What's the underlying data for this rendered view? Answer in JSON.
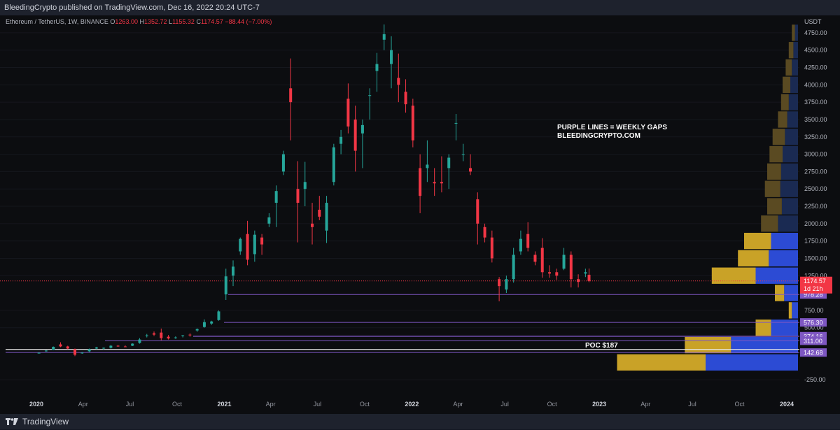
{
  "header": {
    "text": "BleedingCrypto published on TradingView.com, Dec 16, 2022 20:24 UTC-7"
  },
  "footer": {
    "brand": "TradingView"
  },
  "legend": {
    "symbol": "Ethereum / TetherUS, 1W, BINANCE",
    "o_label": "O",
    "o": "1263.00",
    "h_label": "H",
    "h": "1352.72",
    "l_label": "L",
    "l": "1155.32",
    "c_label": "C",
    "c": "1174.57",
    "change": "−88.44 (−7.00%)"
  },
  "annotations": {
    "note_line1": "PURPLE LINES = WEEKLY GAPS",
    "note_line2": "BLEEDINGCRYPTO.COM",
    "poc": "POC $187"
  },
  "colors": {
    "up": "#26a69a",
    "down": "#f23645",
    "gap_line": "#7e57c2",
    "vp_gold": "#c9a227",
    "vp_blue": "#2c4bd4",
    "price_tag": "#f23645",
    "gap_tag": "#7e57c2"
  },
  "chart_data": {
    "type": "candlestick",
    "title": "Ethereum / TetherUS, 1W, BINANCE",
    "ylabel": "USDT",
    "ylim": [
      -420,
      4900
    ],
    "y_ticks": [
      4750,
      4500,
      4250,
      4000,
      3750,
      3500,
      3250,
      3000,
      2750,
      2500,
      2250,
      2000,
      1750,
      1500,
      1250,
      750,
      500,
      -250
    ],
    "x_ticks": [
      "2020",
      "Apr",
      "Jul",
      "Oct",
      "2021",
      "Apr",
      "Jul",
      "Oct",
      "2022",
      "Apr",
      "Jul",
      "Oct",
      "2023",
      "Apr",
      "Jul",
      "Oct",
      "2024"
    ],
    "last_price": 1174.57,
    "countdown": "1d 21h",
    "weekly_gaps": [
      {
        "value": 978.28,
        "label": "978.28"
      },
      {
        "value": 576.3,
        "label": "576.30"
      },
      {
        "value": 378.11,
        "label": "378.11"
      },
      {
        "value": 374.16,
        "label": "374.16"
      },
      {
        "value": 311.0,
        "label": "311.00"
      },
      {
        "value": 142.68,
        "label": "142.68"
      }
    ],
    "poc_level": 187,
    "candles": [
      {
        "date": "2020-01-06",
        "o": 135,
        "h": 145,
        "l": 130,
        "c": 138
      },
      {
        "date": "2020-01-20",
        "o": 160,
        "h": 178,
        "l": 155,
        "c": 170
      },
      {
        "date": "2020-02-03",
        "o": 180,
        "h": 230,
        "l": 175,
        "c": 225
      },
      {
        "date": "2020-02-17",
        "o": 260,
        "h": 290,
        "l": 220,
        "c": 230
      },
      {
        "date": "2020-03-02",
        "o": 230,
        "h": 240,
        "l": 190,
        "c": 200
      },
      {
        "date": "2020-03-16",
        "o": 190,
        "h": 200,
        "l": 90,
        "c": 110
      },
      {
        "date": "2020-03-30",
        "o": 130,
        "h": 150,
        "l": 125,
        "c": 140
      },
      {
        "date": "2020-04-13",
        "o": 160,
        "h": 200,
        "l": 150,
        "c": 190
      },
      {
        "date": "2020-04-27",
        "o": 200,
        "h": 225,
        "l": 190,
        "c": 215
      },
      {
        "date": "2020-05-11",
        "o": 200,
        "h": 215,
        "l": 185,
        "c": 210
      },
      {
        "date": "2020-05-25",
        "o": 210,
        "h": 250,
        "l": 200,
        "c": 240
      },
      {
        "date": "2020-06-08",
        "o": 240,
        "h": 250,
        "l": 225,
        "c": 230
      },
      {
        "date": "2020-06-22",
        "o": 230,
        "h": 245,
        "l": 220,
        "c": 225
      },
      {
        "date": "2020-07-06",
        "o": 240,
        "h": 275,
        "l": 235,
        "c": 270
      },
      {
        "date": "2020-07-20",
        "o": 280,
        "h": 350,
        "l": 270,
        "c": 330
      },
      {
        "date": "2020-08-03",
        "o": 390,
        "h": 410,
        "l": 360,
        "c": 390
      },
      {
        "date": "2020-08-17",
        "o": 420,
        "h": 445,
        "l": 380,
        "c": 400
      },
      {
        "date": "2020-08-31",
        "o": 430,
        "h": 488,
        "l": 320,
        "c": 350
      },
      {
        "date": "2020-09-14",
        "o": 370,
        "h": 395,
        "l": 330,
        "c": 345
      },
      {
        "date": "2020-09-28",
        "o": 350,
        "h": 375,
        "l": 340,
        "c": 360
      },
      {
        "date": "2020-10-12",
        "o": 380,
        "h": 395,
        "l": 360,
        "c": 390
      },
      {
        "date": "2020-10-26",
        "o": 400,
        "h": 420,
        "l": 370,
        "c": 390
      },
      {
        "date": "2020-11-09",
        "o": 460,
        "h": 490,
        "l": 440,
        "c": 480
      },
      {
        "date": "2020-11-23",
        "o": 510,
        "h": 620,
        "l": 500,
        "c": 580
      },
      {
        "date": "2020-12-07",
        "o": 560,
        "h": 600,
        "l": 540,
        "c": 590
      },
      {
        "date": "2020-12-21",
        "o": 610,
        "h": 750,
        "l": 600,
        "c": 735
      },
      {
        "date": "2021-01-04",
        "o": 980,
        "h": 1350,
        "l": 900,
        "c": 1240
      },
      {
        "date": "2021-01-18",
        "o": 1250,
        "h": 1470,
        "l": 1100,
        "c": 1380
      },
      {
        "date": "2021-02-01",
        "o": 1600,
        "h": 1800,
        "l": 1550,
        "c": 1780
      },
      {
        "date": "2021-02-15",
        "o": 1850,
        "h": 2040,
        "l": 1400,
        "c": 1480
      },
      {
        "date": "2021-03-01",
        "o": 1560,
        "h": 1900,
        "l": 1450,
        "c": 1840
      },
      {
        "date": "2021-03-15",
        "o": 1800,
        "h": 1850,
        "l": 1550,
        "c": 1700
      },
      {
        "date": "2021-03-29",
        "o": 2000,
        "h": 2150,
        "l": 1950,
        "c": 2090
      },
      {
        "date": "2021-04-12",
        "o": 2300,
        "h": 2550,
        "l": 1950,
        "c": 2470
      },
      {
        "date": "2021-04-26",
        "o": 2750,
        "h": 3050,
        "l": 2700,
        "c": 3000
      },
      {
        "date": "2021-05-10",
        "o": 3950,
        "h": 4380,
        "l": 3200,
        "c": 3750
      },
      {
        "date": "2021-05-24",
        "o": 2500,
        "h": 2900,
        "l": 1730,
        "c": 2300
      },
      {
        "date": "2021-06-07",
        "o": 2500,
        "h": 2890,
        "l": 2250,
        "c": 2600
      },
      {
        "date": "2021-06-21",
        "o": 2000,
        "h": 2300,
        "l": 1700,
        "c": 1950
      },
      {
        "date": "2021-07-05",
        "o": 2200,
        "h": 2400,
        "l": 2050,
        "c": 2100
      },
      {
        "date": "2021-07-19",
        "o": 1900,
        "h": 2400,
        "l": 1720,
        "c": 2300
      },
      {
        "date": "2021-08-02",
        "o": 2600,
        "h": 3150,
        "l": 2550,
        "c": 3100
      },
      {
        "date": "2021-08-16",
        "o": 3150,
        "h": 3350,
        "l": 3000,
        "c": 3250
      },
      {
        "date": "2021-08-30",
        "o": 3800,
        "h": 4020,
        "l": 3300,
        "c": 3400
      },
      {
        "date": "2021-09-13",
        "o": 3500,
        "h": 3700,
        "l": 2750,
        "c": 3050
      },
      {
        "date": "2021-09-27",
        "o": 3300,
        "h": 3500,
        "l": 2800,
        "c": 3420
      },
      {
        "date": "2021-10-11",
        "o": 3850,
        "h": 3950,
        "l": 3500,
        "c": 3850
      },
      {
        "date": "2021-10-25",
        "o": 4200,
        "h": 4460,
        "l": 3900,
        "c": 4300
      },
      {
        "date": "2021-11-08",
        "o": 4650,
        "h": 4870,
        "l": 4500,
        "c": 4730
      },
      {
        "date": "2021-11-22",
        "o": 4300,
        "h": 4700,
        "l": 3950,
        "c": 4500
      },
      {
        "date": "2021-12-06",
        "o": 4100,
        "h": 4450,
        "l": 3750,
        "c": 4000
      },
      {
        "date": "2021-12-20",
        "o": 3900,
        "h": 4080,
        "l": 3600,
        "c": 3720
      },
      {
        "date": "2022-01-03",
        "o": 3700,
        "h": 3800,
        "l": 3100,
        "c": 3200
      },
      {
        "date": "2022-01-17",
        "o": 2800,
        "h": 3000,
        "l": 2150,
        "c": 2400
      },
      {
        "date": "2022-01-31",
        "o": 2800,
        "h": 3200,
        "l": 2600,
        "c": 2850
      },
      {
        "date": "2022-02-14",
        "o": 2600,
        "h": 2800,
        "l": 2400,
        "c": 2580
      },
      {
        "date": "2022-02-28",
        "o": 2600,
        "h": 2970,
        "l": 2450,
        "c": 2580
      },
      {
        "date": "2022-03-14",
        "o": 2800,
        "h": 3000,
        "l": 2500,
        "c": 2950
      },
      {
        "date": "2022-03-28",
        "o": 3450,
        "h": 3580,
        "l": 3200,
        "c": 3450
      },
      {
        "date": "2022-04-11",
        "o": 3000,
        "h": 3150,
        "l": 2900,
        "c": 3000
      },
      {
        "date": "2022-04-25",
        "o": 2800,
        "h": 3000,
        "l": 2700,
        "c": 2750
      },
      {
        "date": "2022-05-09",
        "o": 2350,
        "h": 2450,
        "l": 1700,
        "c": 2000
      },
      {
        "date": "2022-05-23",
        "o": 1950,
        "h": 2000,
        "l": 1730,
        "c": 1800
      },
      {
        "date": "2022-06-06",
        "o": 1800,
        "h": 1900,
        "l": 1440,
        "c": 1500
      },
      {
        "date": "2022-06-20",
        "o": 1200,
        "h": 1230,
        "l": 880,
        "c": 1100
      },
      {
        "date": "2022-07-04",
        "o": 1050,
        "h": 1250,
        "l": 1000,
        "c": 1200
      },
      {
        "date": "2022-07-18",
        "o": 1200,
        "h": 1650,
        "l": 1150,
        "c": 1550
      },
      {
        "date": "2022-08-01",
        "o": 1600,
        "h": 1900,
        "l": 1550,
        "c": 1780
      },
      {
        "date": "2022-08-15",
        "o": 1850,
        "h": 2020,
        "l": 1600,
        "c": 1650
      },
      {
        "date": "2022-08-29",
        "o": 1550,
        "h": 1600,
        "l": 1400,
        "c": 1450
      },
      {
        "date": "2022-09-12",
        "o": 1650,
        "h": 1790,
        "l": 1220,
        "c": 1300
      },
      {
        "date": "2022-09-26",
        "o": 1300,
        "h": 1400,
        "l": 1220,
        "c": 1280
      },
      {
        "date": "2022-10-10",
        "o": 1300,
        "h": 1350,
        "l": 1190,
        "c": 1250
      },
      {
        "date": "2022-10-24",
        "o": 1350,
        "h": 1650,
        "l": 1330,
        "c": 1550
      },
      {
        "date": "2022-11-07",
        "o": 1550,
        "h": 1600,
        "l": 1080,
        "c": 1200
      },
      {
        "date": "2022-11-21",
        "o": 1200,
        "h": 1270,
        "l": 1080,
        "c": 1160
      },
      {
        "date": "2022-12-05",
        "o": 1280,
        "h": 1350,
        "l": 1230,
        "c": 1300
      },
      {
        "date": "2022-12-12",
        "o": 1263,
        "h": 1352.72,
        "l": 1155.32,
        "c": 1174.57
      }
    ],
    "volume_profile": [
      {
        "price": 4750,
        "gold": 0.04,
        "blue": 0.04
      },
      {
        "price": 4500,
        "gold": 0.06,
        "blue": 0.06
      },
      {
        "price": 4250,
        "gold": 0.08,
        "blue": 0.08
      },
      {
        "price": 4000,
        "gold": 0.1,
        "blue": 0.1
      },
      {
        "price": 3750,
        "gold": 0.1,
        "blue": 0.12
      },
      {
        "price": 3500,
        "gold": 0.12,
        "blue": 0.14
      },
      {
        "price": 3250,
        "gold": 0.16,
        "blue": 0.17
      },
      {
        "price": 3000,
        "gold": 0.17,
        "blue": 0.2
      },
      {
        "price": 2750,
        "gold": 0.18,
        "blue": 0.22
      },
      {
        "price": 2500,
        "gold": 0.2,
        "blue": 0.23
      },
      {
        "price": 2250,
        "gold": 0.19,
        "blue": 0.21
      },
      {
        "price": 2000,
        "gold": 0.22,
        "blue": 0.26
      },
      {
        "price": 1750,
        "gold": 0.35,
        "blue": 0.35
      },
      {
        "price": 1500,
        "gold": 0.4,
        "blue": 0.38
      },
      {
        "price": 1250,
        "gold": 0.57,
        "blue": 0.55
      },
      {
        "price": 1000,
        "gold": 0.12,
        "blue": 0.18
      },
      {
        "price": 750,
        "gold": 0.04,
        "blue": 0.08
      },
      {
        "price": 500,
        "gold": 0.2,
        "blue": 0.35
      },
      {
        "price": 250,
        "gold": 0.6,
        "blue": 0.87
      },
      {
        "price": 0,
        "gold": 1.15,
        "blue": 1.2
      }
    ]
  }
}
